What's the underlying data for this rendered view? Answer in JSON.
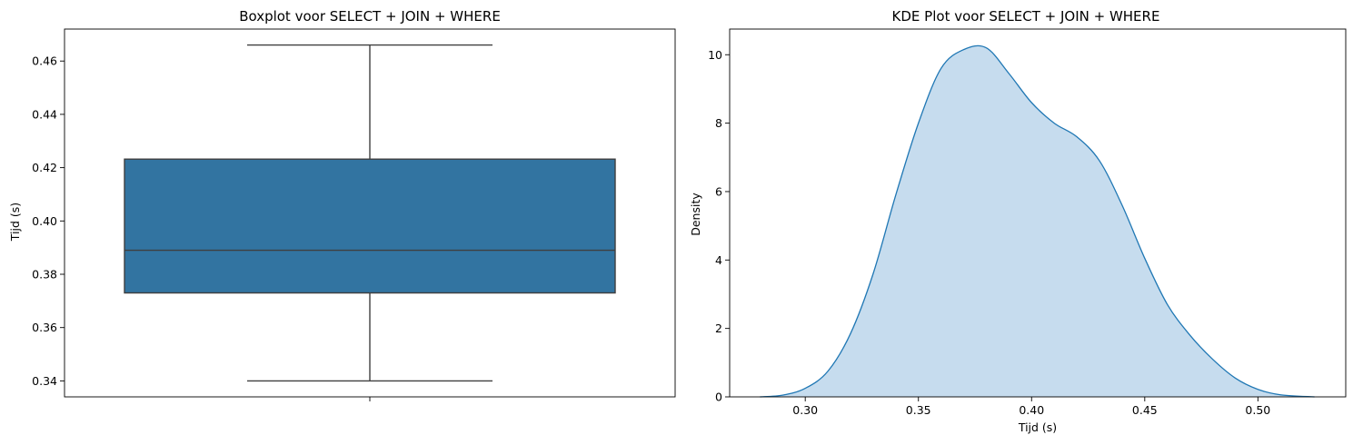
{
  "chart_data": [
    {
      "type": "box",
      "title": "Boxplot voor SELECT + JOIN + WHERE",
      "xlabel": "",
      "ylabel": "Tijd (s)",
      "ylim": [
        0.334,
        0.472
      ],
      "yticks": [
        0.34,
        0.36,
        0.38,
        0.4,
        0.42,
        0.44,
        0.46
      ],
      "ytick_labels": [
        "0.34",
        "0.36",
        "0.38",
        "0.40",
        "0.42",
        "0.44",
        "0.46"
      ],
      "box": {
        "min": 0.34,
        "q1": 0.373,
        "median": 0.389,
        "q3": 0.4232,
        "max": 0.466
      },
      "colors": {
        "box": "#3274a1",
        "line": "#3f3f3f"
      },
      "grid": false
    },
    {
      "type": "area",
      "title": "KDE Plot voor SELECT + JOIN + WHERE",
      "xlabel": "Tijd (s)",
      "ylabel": "Density",
      "xlim": [
        0.2666,
        0.5388
      ],
      "ylim": [
        0,
        10.75
      ],
      "xticks": [
        0.3,
        0.35,
        0.4,
        0.45,
        0.5
      ],
      "xtick_labels": [
        "0.30",
        "0.35",
        "0.40",
        "0.45",
        "0.50"
      ],
      "yticks": [
        0,
        2,
        4,
        6,
        8,
        10
      ],
      "ytick_labels": [
        "0",
        "2",
        "4",
        "6",
        "8",
        "10"
      ],
      "x": [
        0.28,
        0.29,
        0.3,
        0.31,
        0.32,
        0.33,
        0.34,
        0.35,
        0.36,
        0.37,
        0.38,
        0.39,
        0.4,
        0.41,
        0.42,
        0.43,
        0.44,
        0.45,
        0.46,
        0.47,
        0.48,
        0.49,
        0.5,
        0.51,
        0.525
      ],
      "y": [
        0.0,
        0.05,
        0.25,
        0.75,
        1.85,
        3.6,
        5.9,
        8.0,
        9.6,
        10.15,
        10.2,
        9.45,
        8.6,
        8.0,
        7.6,
        6.9,
        5.6,
        4.05,
        2.7,
        1.8,
        1.1,
        0.55,
        0.22,
        0.06,
        0.0
      ],
      "colors": {
        "line": "#1f77b4",
        "fill": "#c6dcee"
      },
      "grid": false
    }
  ]
}
